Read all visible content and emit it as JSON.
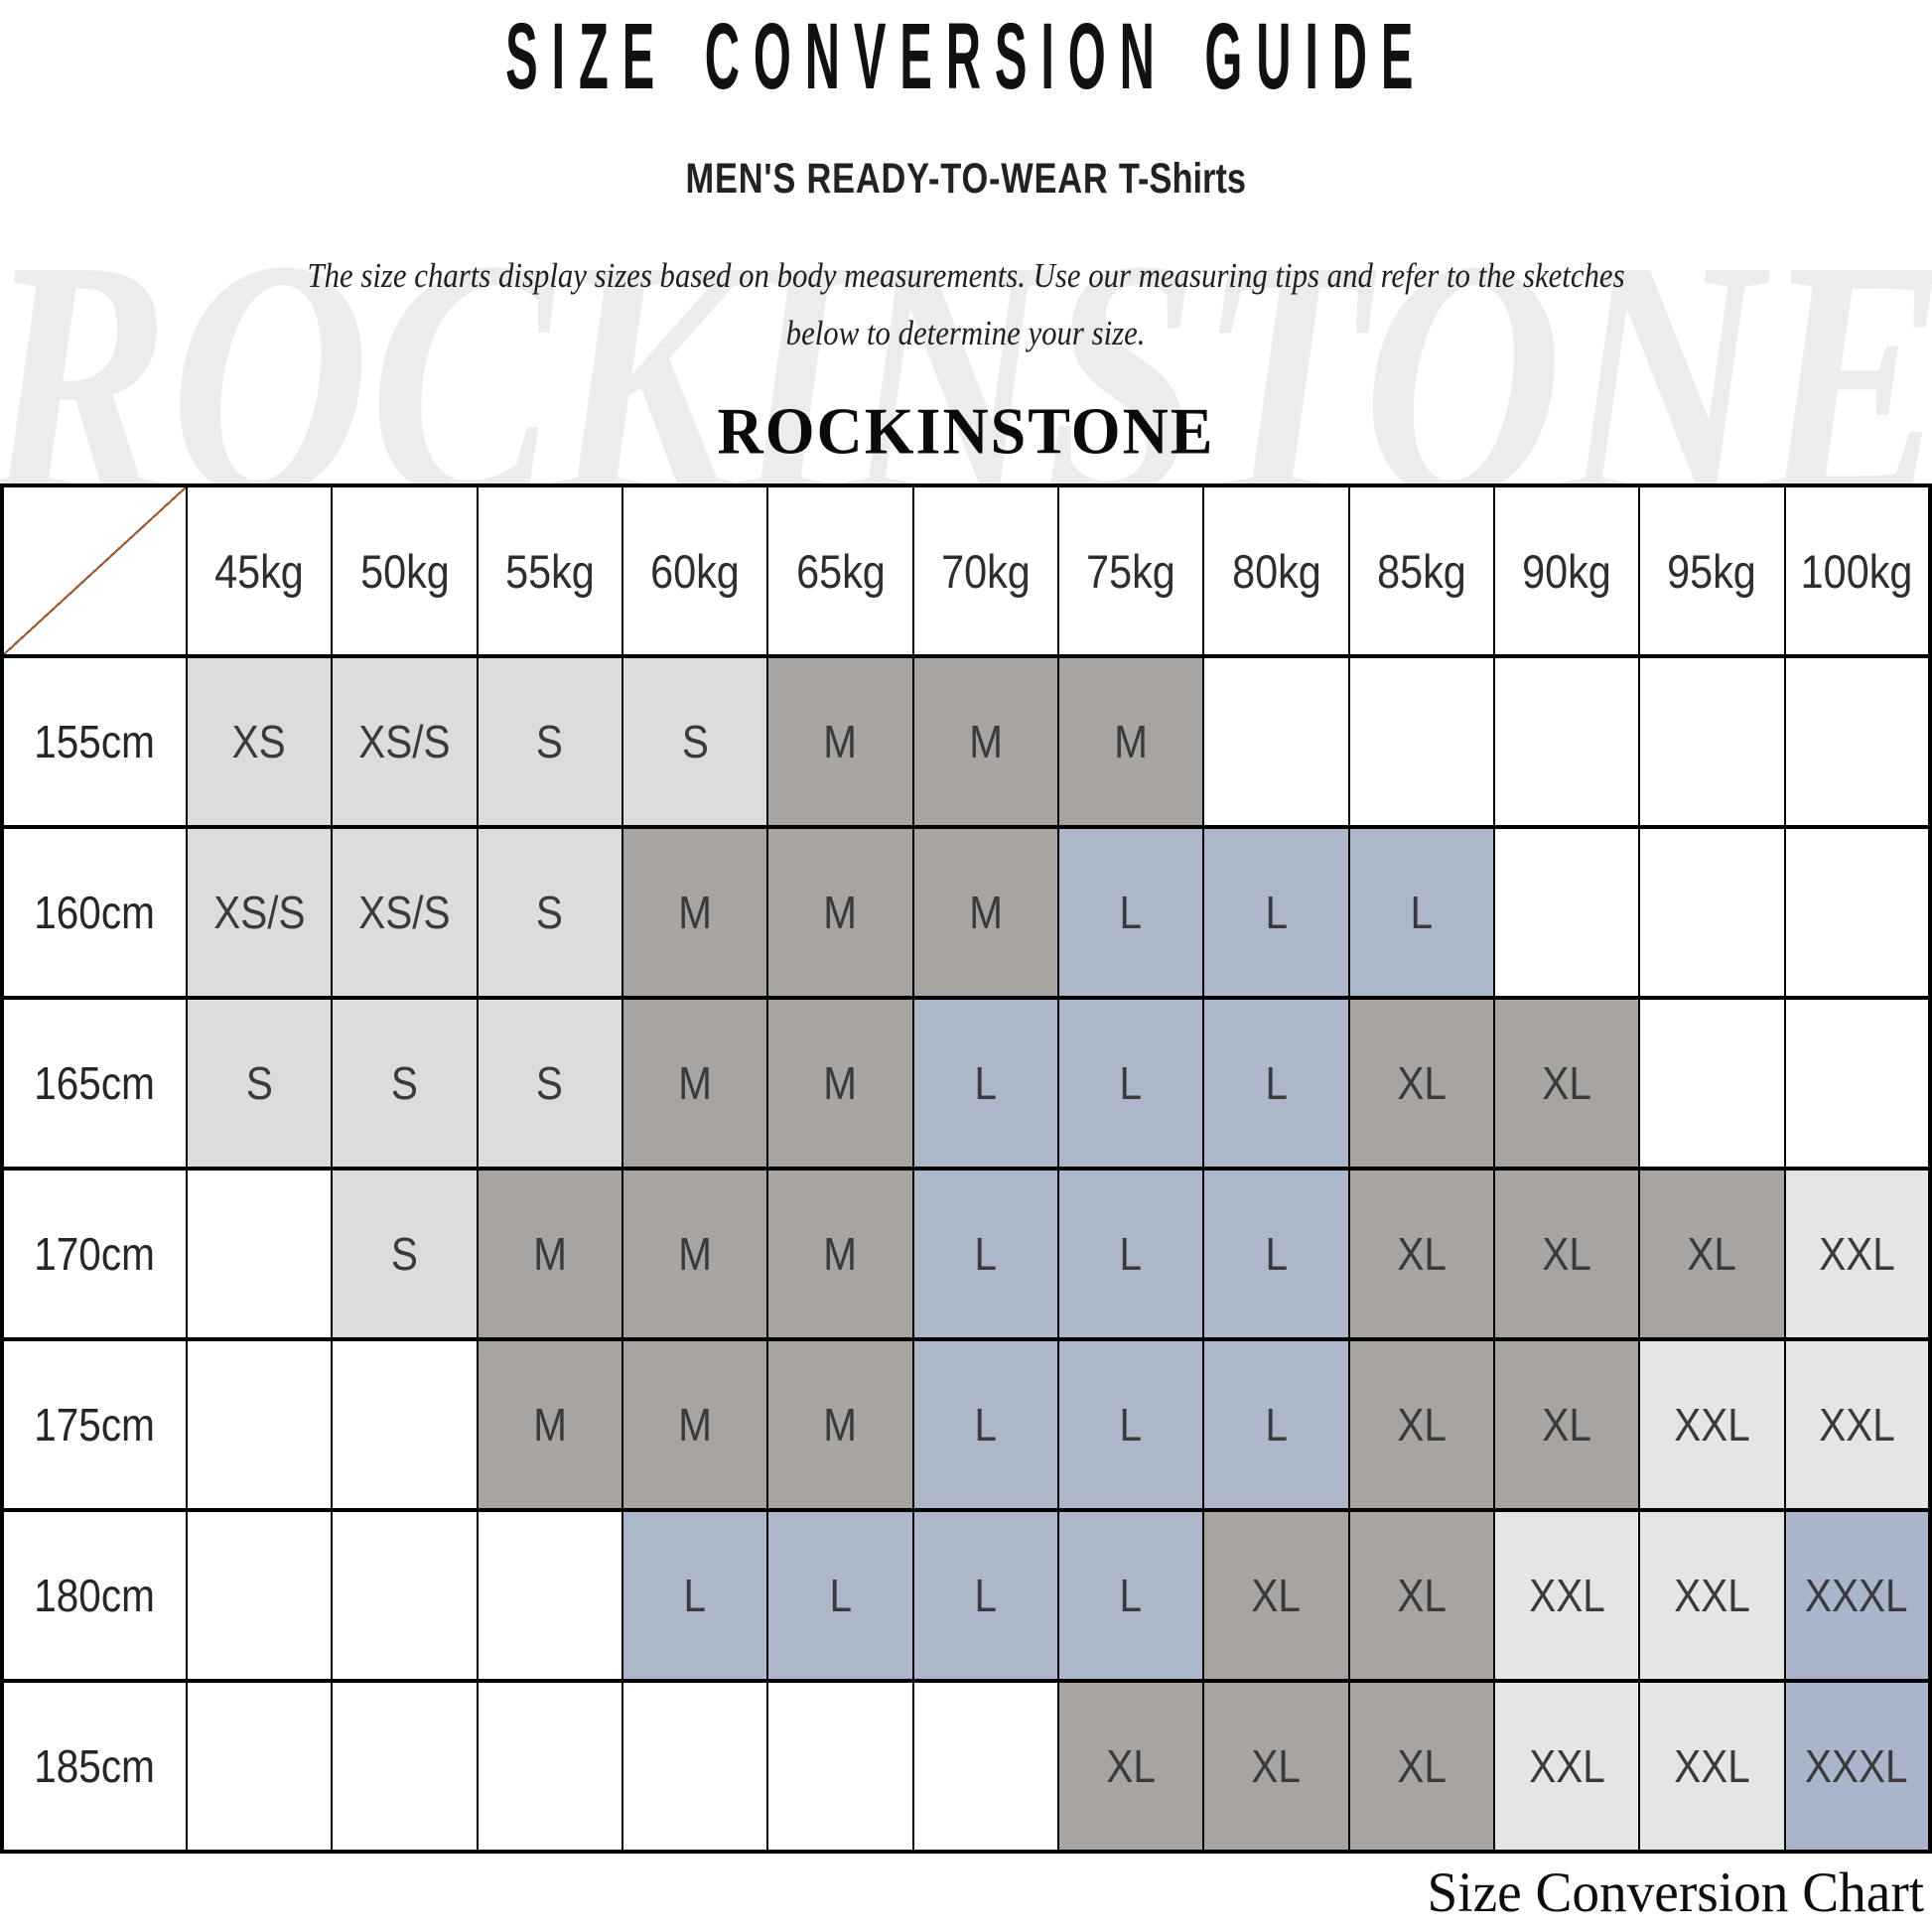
{
  "page": {
    "title": "SIZE CONVERSION GUIDE",
    "subtitle_main": "MEN'S READY-TO-WEAR",
    "subtitle_sub": "T-Shirts",
    "description_line1": "The size charts display sizes based on body measurements.  Use our measuring tips and refer to the sketches",
    "description_line2": "below to determine your size.",
    "brand": "ROCKINSTONE",
    "watermark": "ROCKINSTONE",
    "caption": "Size Conversion Chart"
  },
  "size_colors": {
    "XS": "#dcdcdc",
    "XS/S": "#dcdcdc",
    "S": "#dcdcdc",
    "M": "#a8a4a1",
    "L": "#acb8ca",
    "XL": "#a8a4a1",
    "XXL": "#e5e5e5",
    "XXXL": "#a9b5cb",
    "": "#ffffff"
  },
  "table": {
    "corner_diagonal_color": "#a05a2c",
    "weight_headers": [
      "45kg",
      "50kg",
      "55kg",
      "60kg",
      "65kg",
      "70kg",
      "75kg",
      "80kg",
      "85kg",
      "90kg",
      "95kg",
      "100kg"
    ],
    "rows": [
      {
        "height": "155cm",
        "cells": [
          "XS",
          "XS/S",
          "S",
          "S",
          "M",
          "M",
          "M",
          "",
          "",
          "",
          "",
          ""
        ]
      },
      {
        "height": "160cm",
        "cells": [
          "XS/S",
          "XS/S",
          "S",
          "M",
          "M",
          "M",
          "L",
          "L",
          "L",
          "",
          "",
          ""
        ]
      },
      {
        "height": "165cm",
        "cells": [
          "S",
          "S",
          "S",
          "M",
          "M",
          "L",
          "L",
          "L",
          "XL",
          "XL",
          "",
          ""
        ]
      },
      {
        "height": "170cm",
        "cells": [
          "",
          "S",
          "M",
          "M",
          "M",
          "L",
          "L",
          "L",
          "XL",
          "XL",
          "XL",
          "XXL"
        ]
      },
      {
        "height": "175cm",
        "cells": [
          "",
          "",
          "M",
          "M",
          "M",
          "L",
          "L",
          "L",
          "XL",
          "XL",
          "XXL",
          "XXL"
        ]
      },
      {
        "height": "180cm",
        "cells": [
          "",
          "",
          "",
          "L",
          "L",
          "L",
          "L",
          "XL",
          "XL",
          "XXL",
          "XXL",
          "XXXL"
        ]
      },
      {
        "height": "185cm",
        "cells": [
          "",
          "",
          "",
          "",
          "",
          "",
          "XL",
          "XL",
          "XL",
          "XXL",
          "XXL",
          "XXXL"
        ]
      }
    ]
  }
}
